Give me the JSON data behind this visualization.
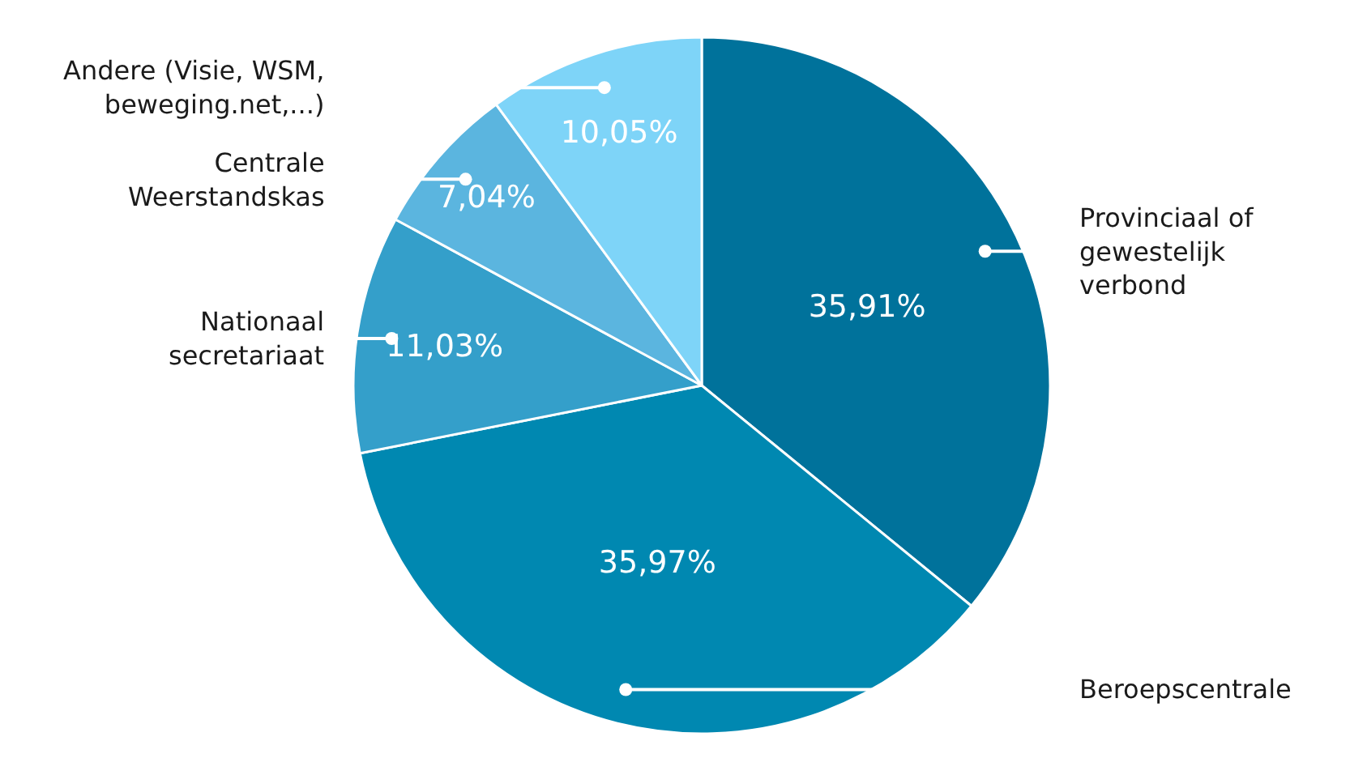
{
  "chart_data": {
    "type": "pie",
    "categories": [
      "Provinciaal of gewestelijk verbond",
      "Beroepscentrale",
      "Nationaal secretariaat",
      "Centrale Weerstandskas",
      "Andere (Visie, WSM, beweging.net,...)"
    ],
    "values": [
      35.91,
      35.97,
      11.03,
      7.04,
      10.05
    ],
    "value_labels": [
      "35,91%",
      "35,97%",
      "11,03%",
      "7,04%",
      "10,05%"
    ],
    "colors": [
      "#00729b",
      "#0088b1",
      "#349fca",
      "#5bb5df",
      "#7ed4f8"
    ],
    "legend": false
  }
}
